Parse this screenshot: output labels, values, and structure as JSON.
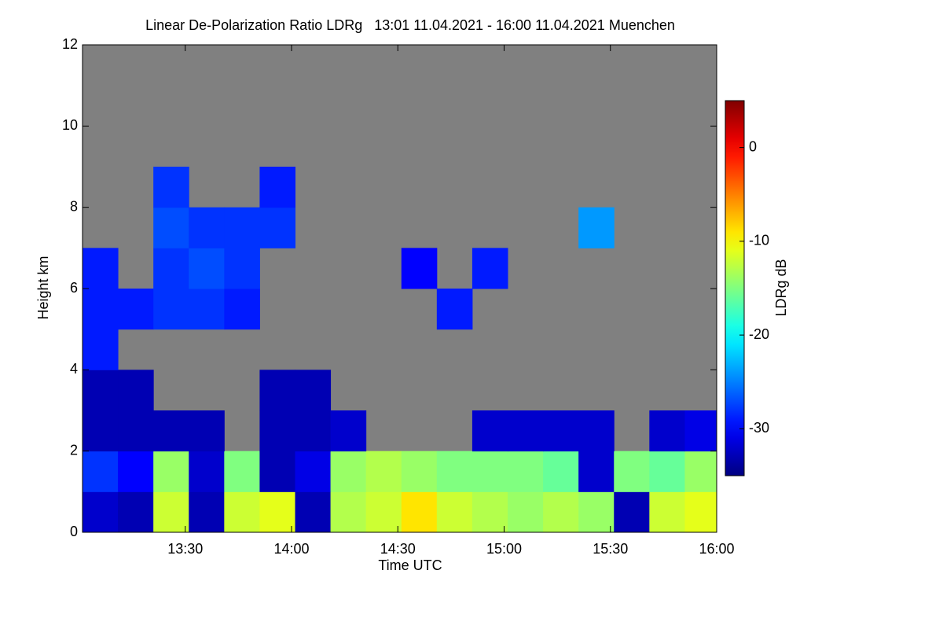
{
  "chart_data": {
    "type": "heatmap",
    "title": "Linear De-Polarization Ratio LDRg   13:01 11.04.2021 - 16:00 11.04.2021 Muenchen",
    "x_label": "Time UTC",
    "y_label": "Height km",
    "colorbar_label": "LDRg dB",
    "background": "#808080",
    "colormap": "jet",
    "x_bins": [
      13.0167,
      13.1833,
      13.35,
      13.5167,
      13.6833,
      13.85,
      14.0167,
      14.1833,
      14.35,
      14.5167,
      14.6833,
      14.85,
      15.0167,
      15.1833,
      15.35,
      15.5167,
      15.6833,
      15.85,
      16.0
    ],
    "y_bins": [
      0,
      1,
      2,
      3,
      4,
      5,
      6,
      7,
      8,
      9,
      10,
      11,
      12
    ],
    "z": [
      [
        -32,
        -33,
        -12,
        -33,
        -12,
        -11,
        -33,
        -13,
        -12,
        -9,
        -12,
        -13,
        -14,
        -13,
        -14,
        -33,
        -12,
        -11
      ],
      [
        -28,
        -30,
        -14,
        -32,
        -15,
        -33,
        -31,
        -14,
        -13,
        -14,
        -15,
        -15,
        -15,
        -16,
        -32,
        -15,
        -16,
        -14
      ],
      [
        -33,
        -33,
        -33,
        -33,
        null,
        -33,
        -33,
        -32,
        null,
        null,
        null,
        -32,
        -32,
        -32,
        -32,
        null,
        -32,
        -31
      ],
      [
        -33,
        -33,
        null,
        null,
        null,
        -33,
        -33,
        null,
        null,
        null,
        null,
        null,
        null,
        null,
        null,
        null,
        null,
        null
      ],
      [
        -29,
        null,
        null,
        null,
        null,
        null,
        null,
        null,
        null,
        null,
        null,
        null,
        null,
        null,
        null,
        null,
        null,
        null
      ],
      [
        -29,
        -29,
        -28,
        -28,
        -29,
        null,
        null,
        null,
        null,
        null,
        -29,
        null,
        null,
        null,
        null,
        null,
        null,
        null
      ],
      [
        -29,
        null,
        -28,
        -27,
        -28,
        null,
        null,
        null,
        null,
        -30,
        null,
        -29,
        null,
        null,
        null,
        null,
        null,
        null
      ],
      [
        null,
        null,
        -27,
        -28,
        -28,
        -28,
        null,
        null,
        null,
        null,
        null,
        null,
        null,
        null,
        -24,
        null,
        null,
        null
      ],
      [
        null,
        null,
        -28,
        null,
        null,
        -29,
        null,
        null,
        null,
        null,
        null,
        null,
        null,
        null,
        null,
        null,
        null,
        null
      ],
      [
        null,
        null,
        null,
        null,
        null,
        null,
        null,
        null,
        null,
        null,
        null,
        null,
        null,
        null,
        null,
        null,
        null,
        null
      ],
      [
        null,
        null,
        null,
        null,
        null,
        null,
        null,
        null,
        null,
        null,
        null,
        null,
        null,
        null,
        null,
        null,
        null,
        null
      ],
      [
        null,
        null,
        null,
        null,
        null,
        null,
        null,
        null,
        null,
        null,
        null,
        null,
        null,
        null,
        null,
        null,
        null,
        null
      ]
    ],
    "xlim": [
      13.0167,
      16.0
    ],
    "xticks": [
      {
        "value": 13.5,
        "label": "13:30"
      },
      {
        "value": 14.0,
        "label": "14:00"
      },
      {
        "value": 14.5,
        "label": "14:30"
      },
      {
        "value": 15.0,
        "label": "15:00"
      },
      {
        "value": 15.5,
        "label": "15:30"
      },
      {
        "value": 16.0,
        "label": "16:00"
      }
    ],
    "ylim": [
      0,
      12
    ],
    "yticks": [
      0,
      2,
      4,
      6,
      8,
      10,
      12
    ],
    "zlim": [
      -35,
      5
    ],
    "zticks": [
      0,
      -10,
      -20,
      -30
    ]
  }
}
